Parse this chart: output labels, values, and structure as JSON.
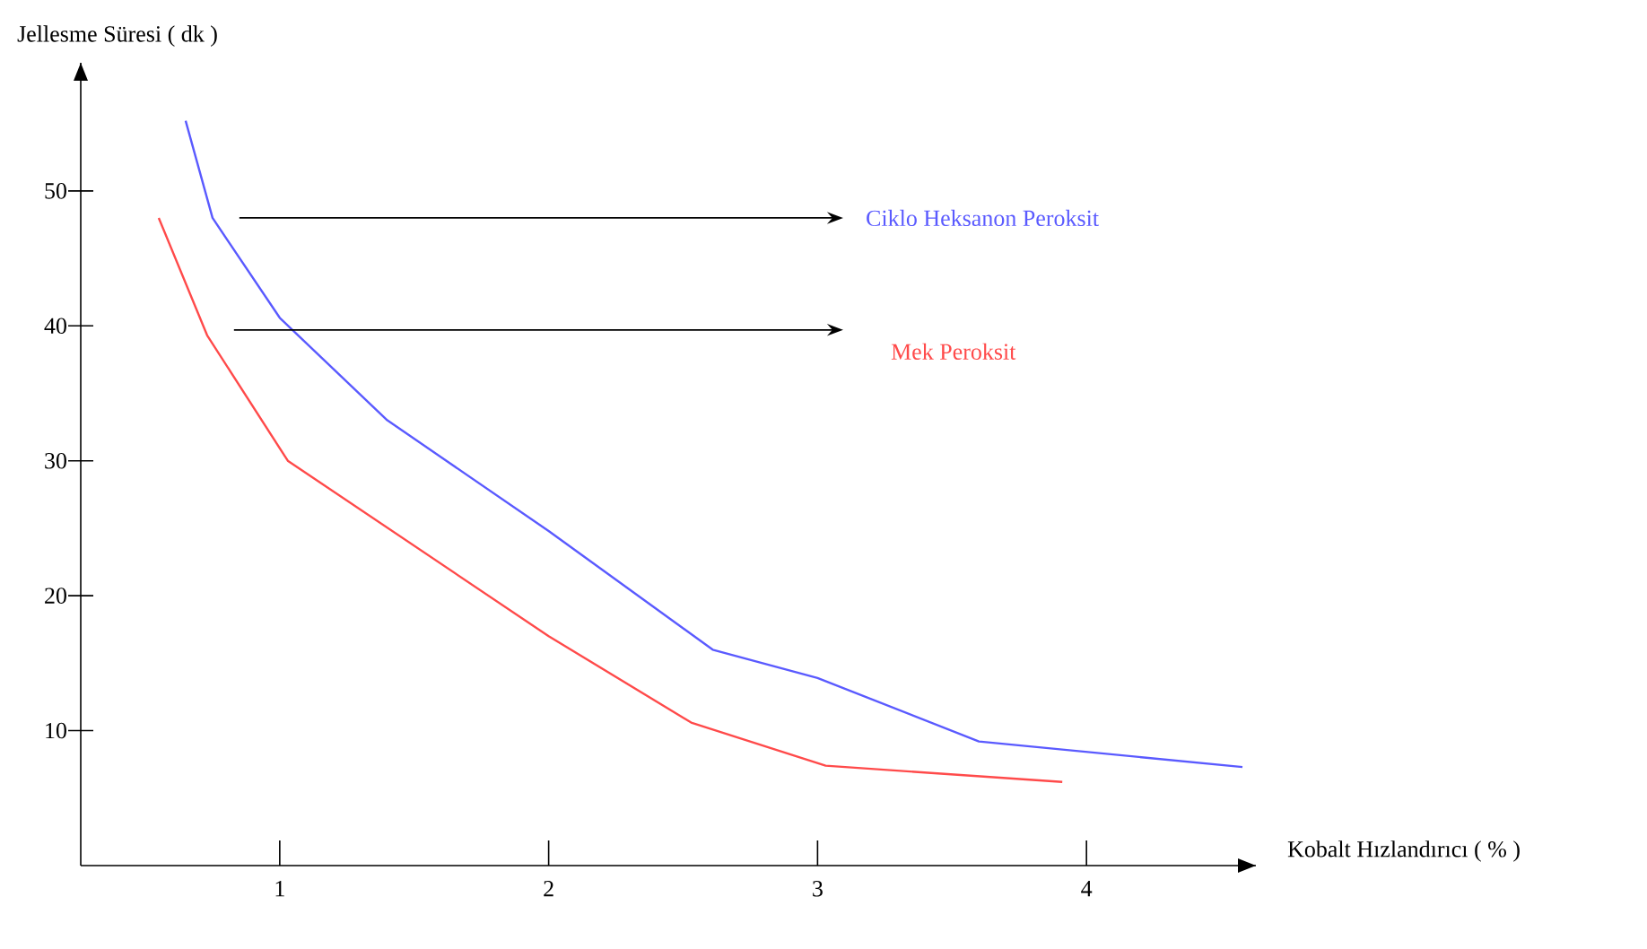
{
  "chart_data": {
    "type": "line",
    "xlabel": "Kobalt Hızlandırıcı ( % )",
    "ylabel": "Jellesme Süresi ( dk )",
    "xlim": [
      0.26,
      4.63
    ],
    "ylim": [
      0,
      59.5
    ],
    "xticks": [
      1,
      2,
      3,
      4
    ],
    "yticks": [
      10,
      20,
      30,
      40,
      50
    ],
    "grid": false,
    "legend": false,
    "marker": "none",
    "line_style": "solid",
    "series": [
      {
        "name": "Ciklo Heksanon Peroksit",
        "color": "#5a5aff",
        "x": [
          0.65,
          0.75,
          1.0,
          1.4,
          2.0,
          2.61,
          3.0,
          3.6,
          4.58
        ],
        "values": [
          55.2,
          48.0,
          40.6,
          33.0,
          24.8,
          16.0,
          13.9,
          9.2,
          7.3
        ]
      },
      {
        "name": "Mek Peroksit",
        "color": "#ff4a4a",
        "x": [
          0.55,
          0.73,
          1.03,
          2.0,
          2.53,
          3.03,
          3.91
        ],
        "values": [
          48.0,
          39.3,
          30.0,
          17.0,
          10.6,
          7.4,
          6.2
        ]
      }
    ]
  }
}
